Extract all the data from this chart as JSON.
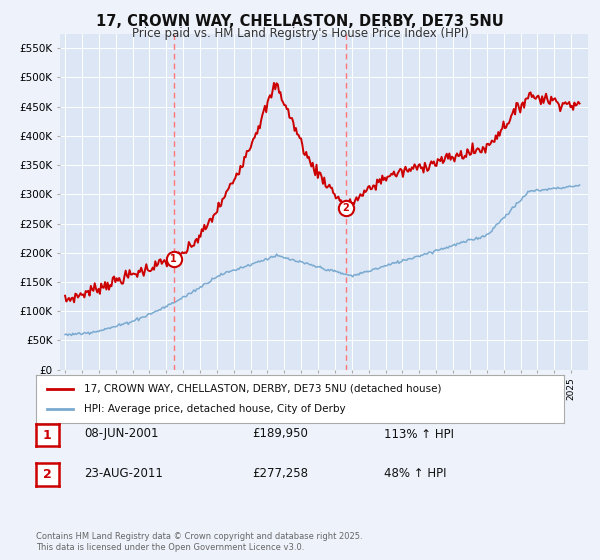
{
  "title": "17, CROWN WAY, CHELLASTON, DERBY, DE73 5NU",
  "subtitle": "Price paid vs. HM Land Registry's House Price Index (HPI)",
  "title_fontsize": 10.5,
  "subtitle_fontsize": 8.5,
  "background_color": "#eef2fa",
  "plot_bg_color": "#dde6f5",
  "red_color": "#cc0000",
  "blue_color": "#7aaad0",
  "vline_color": "#ff7777",
  "ylim": [
    0,
    575000
  ],
  "yticks": [
    0,
    50000,
    100000,
    150000,
    200000,
    250000,
    300000,
    350000,
    400000,
    450000,
    500000,
    550000
  ],
  "ytick_labels": [
    "£0",
    "£50K",
    "£100K",
    "£150K",
    "£200K",
    "£250K",
    "£300K",
    "£350K",
    "£400K",
    "£450K",
    "£500K",
    "£550K"
  ],
  "xlim_left": 1994.7,
  "xlim_right": 2026.0,
  "marker1_x": 2001.44,
  "marker1_y": 189950,
  "marker1_label": "1",
  "marker1_date_str": "08-JUN-2001",
  "marker1_price": "£189,950",
  "marker1_hpi": "113% ↑ HPI",
  "marker2_x": 2011.64,
  "marker2_y": 277258,
  "marker2_label": "2",
  "marker2_date_str": "23-AUG-2011",
  "marker2_price": "£277,258",
  "marker2_hpi": "48% ↑ HPI",
  "legend_line1": "17, CROWN WAY, CHELLASTON, DERBY, DE73 5NU (detached house)",
  "legend_line2": "HPI: Average price, detached house, City of Derby",
  "footnote": "Contains HM Land Registry data © Crown copyright and database right 2025.\nThis data is licensed under the Open Government Licence v3.0."
}
